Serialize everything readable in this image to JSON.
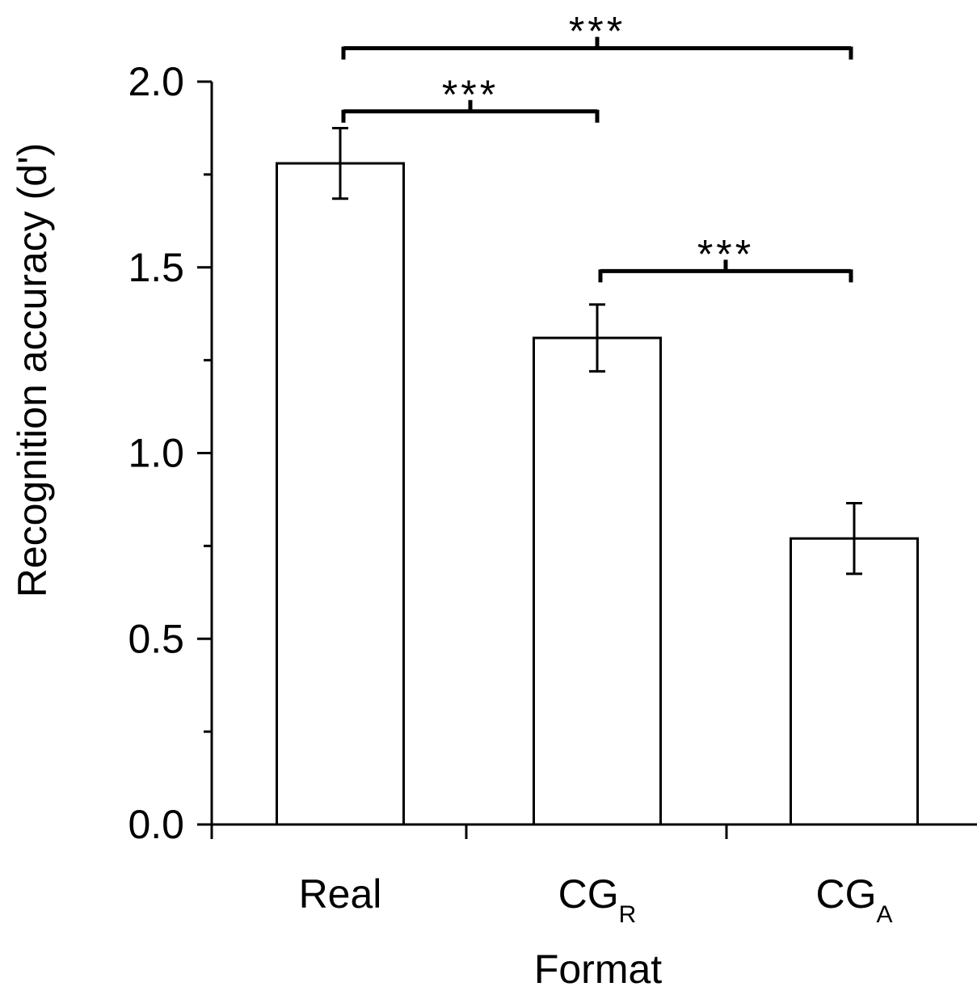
{
  "chart_data": {
    "type": "bar",
    "categories": [
      {
        "main": "Real",
        "sub": ""
      },
      {
        "main": "CG",
        "sub": "R"
      },
      {
        "main": "CG",
        "sub": "A"
      }
    ],
    "values": [
      1.78,
      1.31,
      0.77
    ],
    "errors": [
      0.095,
      0.09,
      0.095
    ],
    "xlabel": "Format",
    "ylabel": "Recognition accuracy (d')",
    "ylim": [
      0,
      2.0
    ],
    "yticks": [
      "0.0",
      "0.5",
      "1.0",
      "1.5",
      "2.0"
    ],
    "ytick_values": [
      0,
      0.5,
      1.0,
      1.5,
      2.0
    ],
    "minor_yticks": [
      0.25,
      0.75,
      1.25,
      1.75
    ],
    "grid": false,
    "bar_fill": "#ffffff",
    "bar_stroke": "#000000",
    "significance": [
      {
        "from": 0,
        "to": 1,
        "label": "***",
        "y": 1.92
      },
      {
        "from": 0,
        "to": 2,
        "label": "***",
        "y": 2.09
      },
      {
        "from": 1,
        "to": 2,
        "label": "***",
        "y": 1.49
      }
    ]
  }
}
